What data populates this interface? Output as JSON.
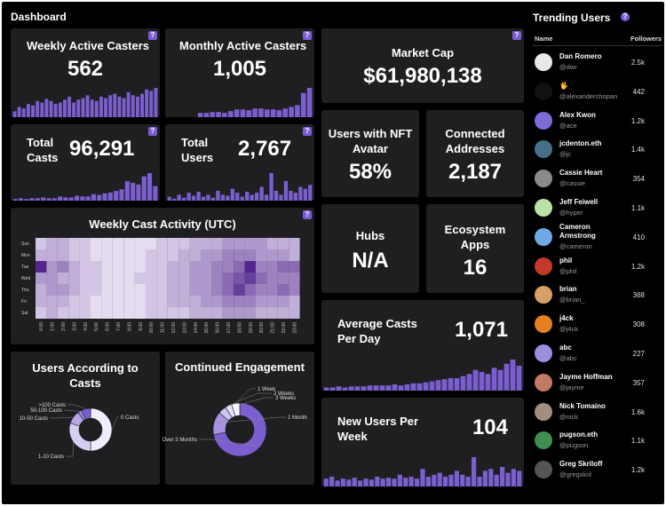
{
  "page_title": "Dashboard",
  "help_glyph": "?",
  "colors": {
    "background": "#000000",
    "card": "#1f1f22",
    "accent": "#7b5fd0"
  },
  "cards": {
    "weekly_active": {
      "title": "Weekly Active Casters",
      "value": "562",
      "spark": [
        8,
        14,
        12,
        18,
        16,
        22,
        20,
        25,
        22,
        18,
        20,
        24,
        28,
        20,
        24,
        26,
        30,
        24,
        22,
        28,
        26,
        30,
        32,
        28,
        26,
        34,
        30,
        28,
        32,
        38,
        36,
        40
      ]
    },
    "monthly_active": {
      "title": "Monthly Active Casters",
      "value": "1,005",
      "spark": [
        0,
        0,
        0,
        0,
        0,
        5,
        5,
        6,
        6,
        5,
        7,
        9,
        9,
        8,
        10,
        10,
        9,
        9,
        8,
        10,
        12,
        14,
        28,
        34
      ]
    },
    "total_casts": {
      "title_line1": "Total",
      "title_line2": "Casts",
      "value": "96,291",
      "spark": [
        2,
        3,
        2,
        3,
        3,
        4,
        3,
        3,
        5,
        4,
        4,
        6,
        5,
        5,
        8,
        7,
        9,
        10,
        12,
        14,
        24,
        22,
        20,
        30,
        34,
        18
      ]
    },
    "total_users": {
      "title_line1": "Total",
      "title_line2": "Users",
      "value": "2,767",
      "spark": [
        4,
        2,
        6,
        3,
        8,
        5,
        9,
        4,
        6,
        3,
        10,
        6,
        5,
        12,
        8,
        4,
        9,
        6,
        8,
        14,
        6,
        28,
        10,
        6,
        20,
        10,
        8,
        14,
        12,
        16
      ]
    },
    "market_cap": {
      "title": "Market Cap",
      "value": "$61,980,138"
    },
    "nft_avatar": {
      "title_line1": "Users with NFT",
      "title_line2": "Avatar",
      "value": "58%"
    },
    "connected": {
      "title_line1": "Connected",
      "title_line2": "Addresses",
      "value": "2,187"
    },
    "hubs": {
      "title": "Hubs",
      "value": "N/A"
    },
    "ecosystem": {
      "title_line1": "Ecosystem",
      "title_line2": "Apps",
      "value": "16"
    },
    "avg_casts": {
      "title_line1": "Average Casts",
      "title_line2": "Per Day",
      "value": "1,071",
      "spark": [
        3,
        3,
        4,
        3,
        4,
        4,
        4,
        5,
        5,
        5,
        5,
        6,
        5,
        6,
        7,
        7,
        8,
        9,
        10,
        11,
        12,
        12,
        14,
        16,
        20,
        18,
        16,
        22,
        20,
        26,
        30,
        24
      ]
    },
    "new_users": {
      "title_line1": "New Users Per",
      "title_line2": "Week",
      "value": "104",
      "spark": [
        8,
        10,
        6,
        8,
        7,
        9,
        6,
        8,
        7,
        10,
        8,
        9,
        8,
        12,
        9,
        10,
        8,
        18,
        10,
        12,
        14,
        10,
        12,
        16,
        12,
        10,
        30,
        10,
        16,
        18,
        12,
        20,
        14,
        18,
        16
      ]
    }
  },
  "heatmap": {
    "title": "Weekly Cast Activity (UTC)",
    "days": [
      "Sun",
      "Mon",
      "Tue",
      "Wed",
      "Thu",
      "Fri",
      "Sat"
    ],
    "hours": [
      "0:00",
      "1:00",
      "2:00",
      "3:00",
      "4:00",
      "5:00",
      "6:00",
      "7:00",
      "8:00",
      "9:00",
      "10:00",
      "11:00",
      "12:00",
      "13:00",
      "14:00",
      "15:00",
      "16:00",
      "17:00",
      "18:00",
      "19:00",
      "20:00",
      "21:00",
      "22:00",
      "23:00"
    ],
    "values": [
      [
        2,
        3,
        3,
        2,
        2,
        1,
        1,
        1,
        1,
        1,
        1,
        2,
        2,
        2,
        3,
        3,
        3,
        4,
        4,
        4,
        4,
        3,
        3,
        3
      ],
      [
        3,
        3,
        3,
        2,
        2,
        1,
        1,
        1,
        1,
        1,
        2,
        2,
        2,
        3,
        3,
        4,
        4,
        5,
        5,
        5,
        4,
        4,
        4,
        3
      ],
      [
        9,
        4,
        5,
        3,
        2,
        2,
        1,
        1,
        1,
        1,
        2,
        2,
        3,
        3,
        4,
        4,
        5,
        5,
        6,
        9,
        5,
        5,
        6,
        6
      ],
      [
        4,
        4,
        3,
        3,
        2,
        2,
        1,
        1,
        1,
        2,
        2,
        2,
        3,
        3,
        4,
        4,
        5,
        6,
        7,
        8,
        6,
        5,
        5,
        5
      ],
      [
        3,
        4,
        4,
        3,
        2,
        2,
        1,
        1,
        1,
        1,
        2,
        2,
        3,
        3,
        4,
        4,
        5,
        6,
        8,
        6,
        5,
        5,
        6,
        5
      ],
      [
        3,
        3,
        3,
        2,
        2,
        1,
        1,
        1,
        1,
        1,
        2,
        2,
        3,
        3,
        3,
        4,
        4,
        5,
        5,
        5,
        4,
        4,
        4,
        3
      ],
      [
        2,
        3,
        2,
        2,
        2,
        1,
        1,
        1,
        1,
        1,
        2,
        2,
        2,
        2,
        3,
        3,
        3,
        4,
        4,
        4,
        3,
        3,
        3,
        3
      ]
    ]
  },
  "casts_donut": {
    "title": "Users According to Casts",
    "segments": [
      {
        "label": "0 Casts",
        "value": 50,
        "color": "#f0ecfb"
      },
      {
        "label": "1-10 Casts",
        "value": 30,
        "color": "#d7cff2"
      },
      {
        "label": "10-50 Casts",
        "value": 10,
        "color": "#b8a7e8"
      },
      {
        "label": "50-100 Casts",
        "value": 3,
        "color": "#9b84dc"
      },
      {
        "label": ">100 Casts",
        "value": 7,
        "color": "#7b5fd0"
      }
    ]
  },
  "engagement_donut": {
    "title": "Continued Engagement",
    "segments": [
      {
        "label": "Over 3 Months",
        "value": 72,
        "color": "#7b5fd0"
      },
      {
        "label": "1 Month",
        "value": 14,
        "color": "#a892e3"
      },
      {
        "label": "3 Weeks",
        "value": 5,
        "color": "#cfc3f0"
      },
      {
        "label": "2 Weeks",
        "value": 4,
        "color": "#e6e0f8"
      },
      {
        "label": "1 Week",
        "value": 5,
        "color": "#f6f4fc"
      }
    ]
  },
  "trending": {
    "title": "Trending Users",
    "col_name": "Name",
    "col_followers": "Followers",
    "users": [
      {
        "name": "Dan Romero",
        "handle": "@dwr",
        "followers": "2.5k",
        "avatar_color": "#e8e8e8"
      },
      {
        "name": "🖐",
        "handle": "@alexanderchopan",
        "followers": "442",
        "avatar_color": "#111111"
      },
      {
        "name": "Alex Kwon",
        "handle": "@ace",
        "followers": "1.2k",
        "avatar_color": "#7d6bd8"
      },
      {
        "name": "jcdenton.eth",
        "handle": "@jc",
        "followers": "1.4k",
        "avatar_color": "#44708a"
      },
      {
        "name": "Cassie Heart",
        "handle": "@cassie",
        "followers": "354",
        "avatar_color": "#8a8a8a"
      },
      {
        "name": "Jeff Feiwell",
        "handle": "@hyper",
        "followers": "1.1k",
        "avatar_color": "#b7e3a4"
      },
      {
        "name": "Cameron Armstrong",
        "name_line1": "Cameron",
        "name_line2": "Armstrong",
        "handle": "@cameron",
        "followers": "410",
        "avatar_color": "#6fa9e6"
      },
      {
        "name": "phil",
        "handle": "@phil",
        "followers": "1.2k",
        "avatar_color": "#c0392b"
      },
      {
        "name": "brian",
        "handle": "@brian_",
        "followers": "368",
        "avatar_color": "#d9a066"
      },
      {
        "name": "j4ck",
        "handle": "@j4ck",
        "followers": "308",
        "avatar_color": "#e67e22"
      },
      {
        "name": "abc",
        "handle": "@abc",
        "followers": "227",
        "avatar_color": "#9b8ee0"
      },
      {
        "name": "Jayme Hoffman",
        "handle": "@jayme",
        "followers": "357",
        "avatar_color": "#c27b63"
      },
      {
        "name": "Nick Tomaino",
        "handle": "@nick",
        "followers": "1.6k",
        "avatar_color": "#a38c80"
      },
      {
        "name": "pugson.eth",
        "handle": "@pugson",
        "followers": "1.1k",
        "avatar_color": "#3e8e4e"
      },
      {
        "name": "Greg Skriloff",
        "handle": "@gregskril",
        "followers": "1.2k",
        "avatar_color": "#555555"
      }
    ]
  }
}
